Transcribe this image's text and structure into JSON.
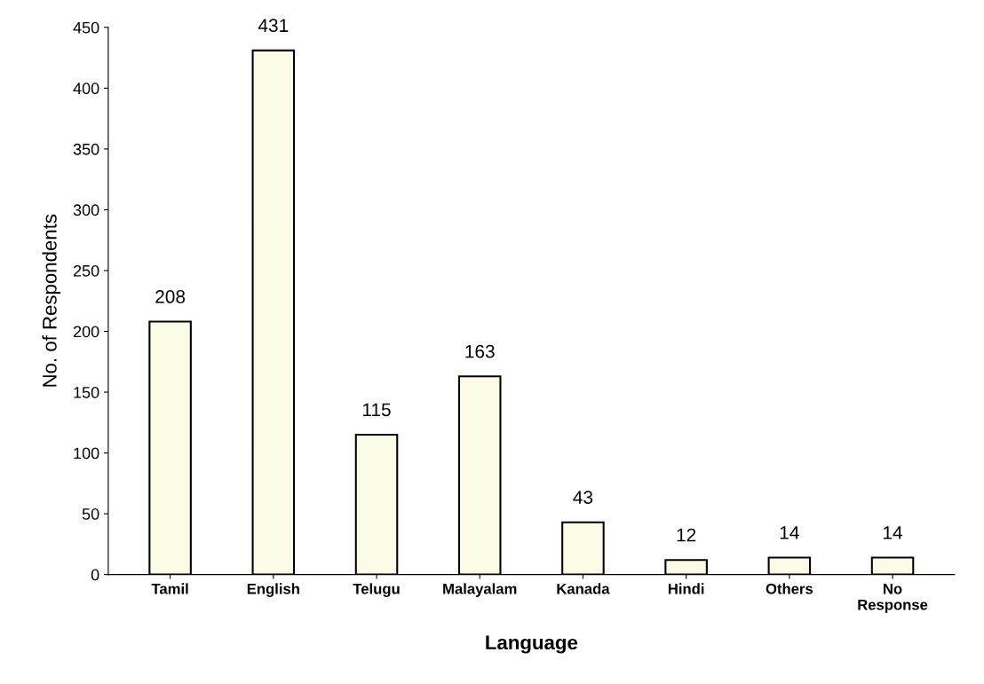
{
  "chart_data": {
    "type": "bar",
    "xlabel": "Language",
    "ylabel": "No. of Respondents",
    "categories": [
      "Tamil",
      "English",
      "Telugu",
      "Malayalam",
      "Kanada",
      "Hindi",
      "Others",
      "No\nResponse"
    ],
    "values": [
      208,
      431,
      115,
      163,
      43,
      12,
      14,
      14
    ],
    "color": "#fcfce6",
    "ylim": [
      0,
      450
    ],
    "yticks": [
      0,
      50,
      100,
      150,
      200,
      250,
      300,
      350,
      400,
      450
    ],
    "data_labels": true,
    "grid": false
  }
}
